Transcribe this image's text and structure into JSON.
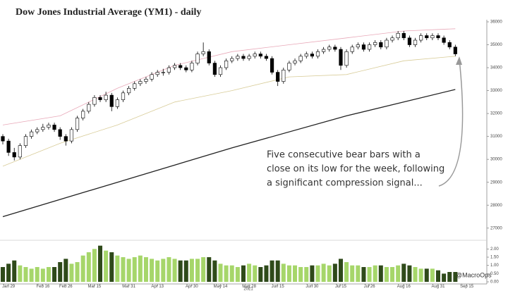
{
  "chart_data": {
    "type": "candlestick",
    "title": "Dow Jones Industrial Average (YM1) - daily",
    "annotation": [
      "Five consecutive bear bars with a",
      "close on its low for the week, following",
      "a significant compression signal..."
    ],
    "watermark": "@MacroOps",
    "year_label": "2021",
    "xlim": [
      0,
      84.5
    ],
    "xticks": [
      {
        "value": 1,
        "label": "Jan 29"
      },
      {
        "value": 7,
        "label": "Feb 16"
      },
      {
        "value": 11,
        "label": "Feb 26"
      },
      {
        "value": 16,
        "label": "Mar 15"
      },
      {
        "value": 22,
        "label": "Mar 31"
      },
      {
        "value": 27,
        "label": "Apr 13"
      },
      {
        "value": 33,
        "label": "Apr 30"
      },
      {
        "value": 38,
        "label": "May 14"
      },
      {
        "value": 43,
        "label": "May 28"
      },
      {
        "value": 48,
        "label": "Jun 15"
      },
      {
        "value": 54,
        "label": "Jun 30"
      },
      {
        "value": 59,
        "label": "Jul 15"
      },
      {
        "value": 64,
        "label": "Jul 26"
      },
      {
        "value": 70,
        "label": "Aug 16"
      },
      {
        "value": 76,
        "label": "Aug 31"
      },
      {
        "value": 81,
        "label": "Sep 15"
      }
    ],
    "ylim": [
      26500,
      36000
    ],
    "yticks": [
      27000,
      28000,
      29000,
      30000,
      31000,
      32000,
      33000,
      34000,
      35000,
      36000
    ],
    "up_color": "#ffffff",
    "down_color": "#000000",
    "candles": [
      [
        31000,
        31100,
        30650,
        30800
      ],
      [
        30800,
        30900,
        30150,
        30300
      ],
      [
        30300,
        30500,
        29950,
        30100
      ],
      [
        30100,
        30700,
        30000,
        30600
      ],
      [
        30600,
        31100,
        30500,
        31000
      ],
      [
        31000,
        31300,
        30900,
        31200
      ],
      [
        31200,
        31400,
        31100,
        31300
      ],
      [
        31300,
        31550,
        31200,
        31400
      ],
      [
        31400,
        31600,
        31300,
        31500
      ],
      [
        31500,
        31600,
        31200,
        31300
      ],
      [
        31300,
        31400,
        30850,
        31000
      ],
      [
        31000,
        31100,
        30600,
        30800
      ],
      [
        30800,
        31400,
        30700,
        31300
      ],
      [
        31300,
        31900,
        31200,
        31800
      ],
      [
        31800,
        32200,
        31700,
        32100
      ],
      [
        32100,
        32500,
        32000,
        32400
      ],
      [
        32400,
        32800,
        32300,
        32700
      ],
      [
        32700,
        32800,
        32500,
        32600
      ],
      [
        32600,
        32950,
        32500,
        32800
      ],
      [
        32800,
        32900,
        32100,
        32300
      ],
      [
        32300,
        32700,
        32200,
        32600
      ],
      [
        32600,
        33000,
        32500,
        32900
      ],
      [
        32900,
        33200,
        32800,
        33100
      ],
      [
        33100,
        33400,
        33000,
        33300
      ],
      [
        33300,
        33500,
        33200,
        33400
      ],
      [
        33400,
        33600,
        33300,
        33500
      ],
      [
        33500,
        33800,
        33400,
        33700
      ],
      [
        33700,
        33900,
        33600,
        33800
      ],
      [
        33800,
        33950,
        33650,
        33800
      ],
      [
        33800,
        34100,
        33700,
        34000
      ],
      [
        34000,
        34200,
        33900,
        34100
      ],
      [
        34100,
        34200,
        33900,
        34000
      ],
      [
        34000,
        34100,
        33800,
        33900
      ],
      [
        33900,
        34300,
        33800,
        34200
      ],
      [
        34200,
        34700,
        34100,
        34600
      ],
      [
        34600,
        35100,
        34500,
        34700
      ],
      [
        34700,
        34800,
        34100,
        34200
      ],
      [
        34200,
        34300,
        33600,
        33700
      ],
      [
        33700,
        34100,
        33600,
        34000
      ],
      [
        34000,
        34400,
        33900,
        34300
      ],
      [
        34300,
        34500,
        34200,
        34400
      ],
      [
        34400,
        34600,
        34300,
        34500
      ],
      [
        34500,
        34600,
        34300,
        34400
      ],
      [
        34400,
        34600,
        34300,
        34500
      ],
      [
        34500,
        34700,
        34400,
        34600
      ],
      [
        34600,
        34700,
        34400,
        34500
      ],
      [
        34500,
        34600,
        34300,
        34400
      ],
      [
        34400,
        34500,
        33700,
        33800
      ],
      [
        33800,
        33900,
        33200,
        33400
      ],
      [
        33400,
        34000,
        33300,
        33900
      ],
      [
        33900,
        34300,
        33800,
        34200
      ],
      [
        34200,
        34400,
        34100,
        34300
      ],
      [
        34300,
        34600,
        34200,
        34500
      ],
      [
        34500,
        34700,
        34400,
        34600
      ],
      [
        34600,
        34700,
        34400,
        34500
      ],
      [
        34500,
        34800,
        34400,
        34700
      ],
      [
        34700,
        34900,
        34600,
        34800
      ],
      [
        34800,
        35000,
        34700,
        34900
      ],
      [
        34900,
        35000,
        34700,
        34800
      ],
      [
        34800,
        34900,
        33900,
        34100
      ],
      [
        34100,
        34800,
        34000,
        34700
      ],
      [
        34700,
        35000,
        34600,
        34900
      ],
      [
        34900,
        35100,
        34800,
        35000
      ],
      [
        35000,
        35100,
        34700,
        34800
      ],
      [
        34800,
        35100,
        34700,
        35000
      ],
      [
        35000,
        35200,
        34900,
        35100
      ],
      [
        35100,
        35200,
        34800,
        34900
      ],
      [
        34900,
        35300,
        34800,
        35200
      ],
      [
        35200,
        35400,
        35100,
        35300
      ],
      [
        35300,
        35600,
        35200,
        35500
      ],
      [
        35500,
        35600,
        35200,
        35300
      ],
      [
        35300,
        35400,
        34900,
        35000
      ],
      [
        35000,
        35300,
        34900,
        35200
      ],
      [
        35200,
        35500,
        35100,
        35400
      ],
      [
        35400,
        35500,
        35200,
        35300
      ],
      [
        35300,
        35500,
        35200,
        35400
      ],
      [
        35400,
        35500,
        35200,
        35300
      ],
      [
        35300,
        35400,
        35000,
        35100
      ],
      [
        35100,
        35200,
        34800,
        34900
      ],
      [
        34900,
        35000,
        34500,
        34600
      ]
    ],
    "lines": [
      {
        "color": "#222222",
        "x": [
          0,
          20,
          40,
          60,
          79
        ],
        "values": [
          27500,
          29000,
          30500,
          31900,
          33050
        ]
      },
      {
        "color": "#e8a8b8",
        "x": [
          0,
          10,
          20,
          30,
          40,
          50,
          60,
          70,
          79
        ],
        "values": [
          31500,
          31900,
          33100,
          34100,
          34700,
          35000,
          35300,
          35600,
          35700
        ]
      },
      {
        "color": "#d8cc98",
        "x": [
          0,
          10,
          20,
          30,
          40,
          50,
          60,
          70,
          79
        ],
        "values": [
          29700,
          30700,
          31500,
          32500,
          33000,
          33600,
          33700,
          34300,
          34500
        ]
      }
    ],
    "volume": {
      "up_color": "#a6d66a",
      "down_color": "#2f4a1a",
      "ylim": [
        0,
        2.4
      ],
      "yticks": [
        {
          "value": 0,
          "label": "0.00"
        },
        {
          "value": 0.5,
          "label": "0.50"
        },
        {
          "value": 1,
          "label": "1.00"
        },
        {
          "value": 1.5,
          "label": "1.50"
        },
        {
          "value": 2,
          "label": "2.00"
        }
      ],
      "values": [
        0.9,
        1.1,
        1.3,
        1.0,
        0.9,
        0.8,
        0.9,
        0.8,
        0.9,
        0.9,
        1.2,
        1.4,
        1.1,
        1.2,
        1.6,
        1.8,
        2.0,
        2.2,
        1.9,
        1.8,
        1.6,
        1.5,
        1.4,
        1.5,
        1.6,
        1.5,
        1.4,
        1.3,
        1.4,
        1.5,
        1.4,
        1.3,
        1.3,
        1.4,
        1.4,
        1.5,
        1.5,
        1.3,
        1.1,
        1.0,
        1.0,
        0.9,
        1.0,
        1.1,
        1.0,
        0.9,
        1.0,
        1.3,
        1.3,
        1.1,
        1.0,
        1.0,
        0.9,
        0.9,
        1.0,
        1.0,
        1.1,
        1.0,
        1.1,
        1.4,
        1.2,
        1.0,
        1.0,
        0.9,
        0.9,
        1.0,
        1.0,
        0.9,
        0.9,
        1.0,
        1.1,
        1.0,
        0.9,
        0.8,
        0.8,
        0.8,
        0.7,
        0.5,
        0.6,
        0.6
      ]
    }
  }
}
